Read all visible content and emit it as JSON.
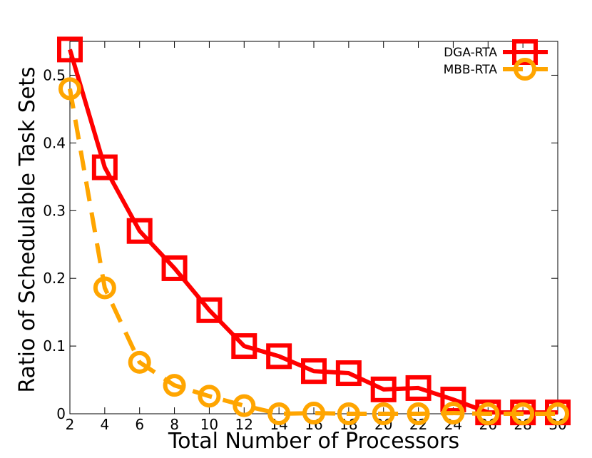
{
  "chart_data": {
    "type": "line",
    "xlabel": "Total Number of Processors",
    "ylabel": "Ratio of Schedulable Task Sets",
    "xlim": [
      2,
      30
    ],
    "ylim": [
      0,
      0.55
    ],
    "x_ticks": [
      2,
      4,
      6,
      8,
      10,
      12,
      14,
      16,
      18,
      20,
      22,
      24,
      26,
      28,
      30
    ],
    "y_ticks": [
      0,
      0.1,
      0.2,
      0.3,
      0.4,
      0.5
    ],
    "y_tick_labels": [
      "0",
      "0.1",
      "0.2",
      "0.3",
      "0.4",
      "0.5"
    ],
    "grid": false,
    "legend_position": "top-right",
    "x": [
      2,
      4,
      6,
      8,
      10,
      12,
      14,
      16,
      18,
      20,
      22,
      24,
      26,
      28,
      30
    ],
    "series": [
      {
        "name": "DGA-RTA",
        "color": "#ff0000",
        "marker": "square",
        "dash": "solid",
        "values": [
          0.538,
          0.364,
          0.27,
          0.215,
          0.153,
          0.1,
          0.085,
          0.063,
          0.06,
          0.036,
          0.038,
          0.021,
          0.002,
          0.002,
          0.002
        ]
      },
      {
        "name": "MBB-RTA",
        "color": "#ffa500",
        "marker": "circle",
        "dash": "dashed",
        "values": [
          0.48,
          0.186,
          0.076,
          0.042,
          0.026,
          0.012,
          0.0,
          0.001,
          0.0,
          0.0,
          0.0,
          0.001,
          0.0,
          0.0,
          0.0
        ]
      }
    ]
  }
}
